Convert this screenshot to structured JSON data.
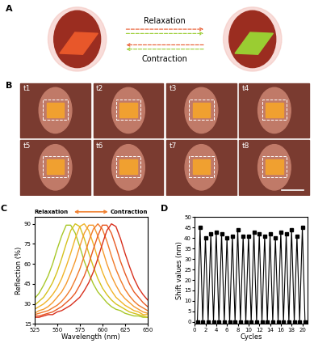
{
  "panels": {
    "A": {
      "label": "A",
      "texts": [
        "Relaxation",
        "Contraction"
      ]
    },
    "B": {
      "label": "B",
      "frame_labels": [
        "t1",
        "t2",
        "t3",
        "t4",
        "t5",
        "t6",
        "t7",
        "t8"
      ]
    }
  },
  "chart_data": [
    {
      "type": "line",
      "title": "C",
      "x_label": "Wavelength (nm)",
      "y_label": "Reflection (%)",
      "annotations": [
        "Relaxation",
        "Contraction"
      ],
      "x": [
        525,
        530,
        535,
        540,
        545,
        550,
        555,
        560,
        565,
        570,
        575,
        580,
        585,
        590,
        595,
        600,
        605,
        610,
        615,
        620,
        625,
        630,
        635,
        640,
        645,
        650
      ],
      "series": [
        {
          "color": "#a8c82a",
          "values": [
            34,
            38,
            44,
            51,
            60,
            71,
            81,
            89,
            89,
            83,
            73,
            62,
            53,
            45,
            39,
            35,
            31,
            28,
            26,
            25,
            23,
            22,
            21,
            21,
            20,
            20
          ]
        },
        {
          "color": "#d4c21e",
          "values": [
            29,
            32,
            35,
            40,
            46,
            54,
            64,
            75,
            85,
            90,
            88,
            79,
            68,
            58,
            49,
            42,
            37,
            33,
            30,
            28,
            26,
            24,
            23,
            22,
            21,
            20
          ]
        },
        {
          "color": "#f0b428",
          "values": [
            26,
            28,
            30,
            33,
            37,
            42,
            49,
            58,
            68,
            79,
            88,
            90,
            85,
            75,
            64,
            54,
            46,
            40,
            35,
            32,
            29,
            27,
            25,
            24,
            22,
            22
          ]
        },
        {
          "color": "#f59a2e",
          "values": [
            23,
            25,
            26,
            28,
            31,
            35,
            39,
            45,
            53,
            62,
            73,
            83,
            89,
            89,
            81,
            71,
            60,
            51,
            44,
            38,
            34,
            31,
            28,
            26,
            24,
            23
          ]
        },
        {
          "color": "#f07a2a",
          "values": [
            22,
            23,
            24,
            25,
            27,
            29,
            32,
            36,
            41,
            48,
            56,
            66,
            77,
            86,
            90,
            86,
            77,
            66,
            56,
            48,
            41,
            36,
            32,
            29,
            27,
            25
          ]
        },
        {
          "color": "#e85a24",
          "values": [
            21,
            21,
            22,
            23,
            24,
            26,
            28,
            31,
            34,
            38,
            44,
            51,
            60,
            71,
            81,
            89,
            89,
            83,
            73,
            62,
            53,
            45,
            39,
            35,
            31,
            28
          ]
        },
        {
          "color": "#d8301e",
          "values": [
            20,
            20,
            21,
            22,
            22,
            24,
            25,
            27,
            29,
            32,
            35,
            40,
            46,
            54,
            64,
            75,
            85,
            90,
            88,
            79,
            68,
            58,
            49,
            42,
            37,
            33
          ]
        }
      ],
      "xlim": [
        525,
        650
      ],
      "xticks": [
        525,
        550,
        575,
        600,
        625,
        650
      ],
      "ylim": [
        15,
        95
      ],
      "yticks": [
        15,
        30,
        45,
        60,
        75,
        90
      ],
      "grid": false
    },
    {
      "type": "line",
      "title": "D",
      "x_label": "Cycles",
      "y_label": "Shift values (nm)",
      "x": [
        0.5,
        1,
        1.5,
        2,
        2.5,
        3,
        3.5,
        4,
        4.5,
        5,
        5.5,
        6,
        6.5,
        7,
        7.5,
        8,
        8.5,
        9,
        9.5,
        10,
        10.5,
        11,
        11.5,
        12,
        12.5,
        13,
        13.5,
        14,
        14.5,
        15,
        15.5,
        16,
        16.5,
        17,
        17.5,
        18,
        18.5,
        19,
        19.5,
        20,
        20.5
      ],
      "series": [
        {
          "color": "#000000",
          "marker": "square",
          "line_style": "solid",
          "values": [
            0,
            45,
            0,
            40,
            0,
            42,
            0,
            43,
            0,
            42,
            0,
            40,
            0,
            41,
            0,
            44,
            0,
            41,
            0,
            41,
            0,
            43,
            0,
            42,
            0,
            41,
            0,
            42,
            0,
            40,
            0,
            43,
            0,
            42,
            0,
            44,
            0,
            41,
            0,
            45,
            0
          ]
        }
      ],
      "xlim": [
        0,
        21
      ],
      "xticks": [
        0,
        2,
        4,
        6,
        8,
        10,
        12,
        14,
        16,
        18,
        20
      ],
      "ylim": [
        -1,
        50
      ],
      "yticks": [
        0,
        5,
        10,
        15,
        20,
        25,
        30,
        35,
        40,
        45,
        50
      ],
      "grid": false
    }
  ]
}
